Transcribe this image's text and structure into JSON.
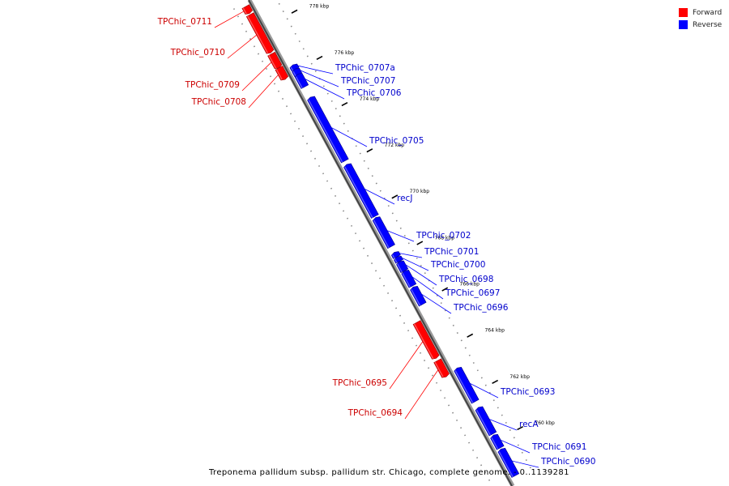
{
  "legend": {
    "forward_label": "Forward",
    "reverse_label": "Reverse",
    "forward_color": "#ff0000",
    "reverse_color": "#0000ff"
  },
  "caption": "Treponema pallidum subsp. pallidum str. Chicago, complete genome. - 0..1139281",
  "scale_unit": "kbp",
  "ticks": [
    778,
    776,
    774,
    772,
    770,
    768,
    766,
    764,
    762,
    760
  ],
  "genes": [
    {
      "name": "TPChic_0711",
      "strand": "forward",
      "start": 779.05,
      "end": 778.8
    },
    {
      "name": "TPChic_0710",
      "strand": "forward",
      "start": 778.7,
      "end": 777.1
    },
    {
      "name": "TPChic_0709",
      "strand": "forward",
      "start": 777.0,
      "end": 776.45
    },
    {
      "name": "TPChic_0708",
      "strand": "forward",
      "start": 776.4,
      "end": 775.95
    },
    {
      "name": "TPChic_0707a",
      "strand": "reverse",
      "start": 776.2,
      "end": 776.05
    },
    {
      "name": "TPChic_0707",
      "strand": "reverse",
      "start": 776.02,
      "end": 775.82
    },
    {
      "name": "TPChic_0706",
      "strand": "reverse",
      "start": 775.8,
      "end": 775.3
    },
    {
      "name": "TPChic_0705",
      "strand": "reverse",
      "start": 774.8,
      "end": 772.1
    },
    {
      "name": "recJ",
      "strand": "reverse",
      "start": 771.9,
      "end": 769.7
    },
    {
      "name": "TPChic_0702",
      "strand": "reverse",
      "start": 769.6,
      "end": 768.4
    },
    {
      "name": "TPChic_0701",
      "strand": "reverse",
      "start": 768.1,
      "end": 767.95
    },
    {
      "name": "TPChic_0700",
      "strand": "reverse",
      "start": 767.9,
      "end": 767.75
    },
    {
      "name": "TPChic_0698",
      "strand": "reverse",
      "start": 767.7,
      "end": 767.35
    },
    {
      "name": "TPChic_0697",
      "strand": "reverse",
      "start": 767.3,
      "end": 766.7
    },
    {
      "name": "TPChic_0696",
      "strand": "reverse",
      "start": 766.6,
      "end": 765.9
    },
    {
      "name": "TPChic_0695",
      "strand": "forward",
      "start": 765.4,
      "end": 763.9
    },
    {
      "name": "TPChic_0694",
      "strand": "forward",
      "start": 763.75,
      "end": 763.1
    },
    {
      "name": "TPChic_0693",
      "strand": "reverse",
      "start": 763.1,
      "end": 761.7
    },
    {
      "name": "recA",
      "strand": "reverse",
      "start": 761.4,
      "end": 760.3
    },
    {
      "name": "TPChic_0691",
      "strand": "reverse",
      "start": 760.2,
      "end": 759.7
    },
    {
      "name": "TPChic_0690",
      "strand": "reverse",
      "start": 759.6,
      "end": 758.5
    }
  ]
}
